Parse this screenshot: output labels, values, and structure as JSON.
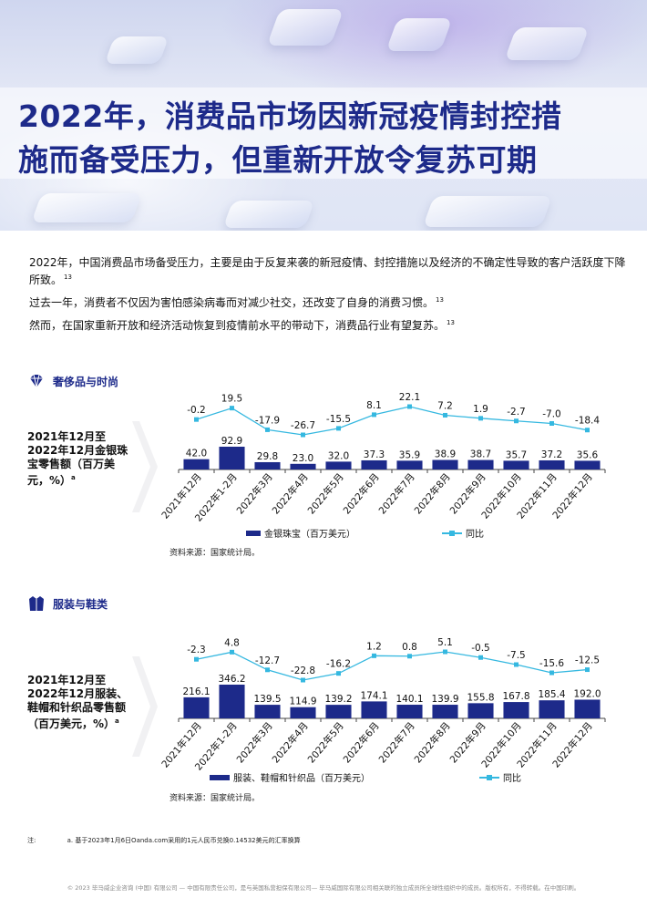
{
  "title": "2022年，消费品市场因新冠疫情封控措施而备受压力，但重新开放令复苏可期",
  "title_lines": [
    "2022年，消费品市场因新冠疫情封控措",
    "施而备受压力，但重新开放令复苏可期"
  ],
  "intro": [
    {
      "text": "2022年，中国消费品市场备受压力，主要是由于反复来袭的新冠疫情、封控措施以及经济的不确定性导致的客户活跃度下降所致。",
      "ref": "13"
    },
    {
      "text": "过去一年，消费者不仅因为害怕感染病毒而对减少社交，还改变了自身的消费习惯。",
      "ref": "13"
    },
    {
      "text": "然而，在国家重新开放和经济活动恢复到疫情前水平的带动下，消费品行业有望复苏。",
      "ref": "13"
    }
  ],
  "sections": [
    {
      "heading": "奢侈品与时尚",
      "icon": "diamond-icon",
      "side_label": "2021年12月至2022年12月金银珠宝零售额（百万美元，%）",
      "side_sup": "a",
      "source": "资料来源：国家统计局。"
    },
    {
      "heading": "服装与鞋类",
      "icon": "jacket-icon",
      "side_label": "2021年12月至2022年12月服装、鞋帽和针织品零售额（百万美元，%）",
      "side_sup": "a",
      "source": "资料来源：国家统计局。"
    }
  ],
  "chart_data": [
    {
      "type": "bar",
      "categories": [
        "2021年12月",
        "2022年1-2月",
        "2022年3月",
        "2022年4月",
        "2022年5月",
        "2022年6月",
        "2022年7月",
        "2022年8月",
        "2022年9月",
        "2022年10月",
        "2022年11月",
        "2022年12月"
      ],
      "series": [
        {
          "name": "金银珠宝（百万美元）",
          "type": "bar",
          "values": [
            42.0,
            92.9,
            29.8,
            23.0,
            32.0,
            37.3,
            35.9,
            38.9,
            38.7,
            35.7,
            37.2,
            35.6
          ]
        },
        {
          "name": "同比",
          "type": "line",
          "values": [
            -0.2,
            19.5,
            -17.9,
            -26.7,
            -15.5,
            8.1,
            22.1,
            7.2,
            1.9,
            -2.7,
            -7.0,
            -18.4
          ]
        }
      ],
      "colors": {
        "bar": "#1d2a8a",
        "line": "#35b8e0"
      },
      "legend": "bottom"
    },
    {
      "type": "bar",
      "categories": [
        "2021年12月",
        "2022年1-2月",
        "2022年3月",
        "2022年4月",
        "2022年5月",
        "2022年6月",
        "2022年7月",
        "2022年8月",
        "2022年9月",
        "2022年10月",
        "2022年11月",
        "2022年12月"
      ],
      "series": [
        {
          "name": "服装、鞋帽和针织品（百万美元）",
          "type": "bar",
          "values": [
            216.1,
            346.2,
            139.5,
            114.9,
            139.2,
            174.1,
            140.1,
            139.9,
            155.8,
            167.8,
            185.4,
            192.0
          ]
        },
        {
          "name": "同比",
          "type": "line",
          "values": [
            -2.3,
            4.8,
            -12.7,
            -22.8,
            -16.2,
            1.2,
            0.8,
            5.1,
            -0.5,
            -7.5,
            -15.6,
            -12.5
          ]
        }
      ],
      "colors": {
        "bar": "#1d2a8a",
        "line": "#35b8e0"
      },
      "legend": "bottom"
    }
  ],
  "footnote": {
    "label": "注:",
    "text": "a. 基于2023年1月6日Oanda.com采用的1元人民币兑换0.14532美元的汇率换算"
  },
  "copyright": "© 2023 毕马威企业咨询 (中国) 有限公司 — 中国有限责任公司，是与英国私营担保有限公司— 毕马威国际有限公司相关联的独立成员所全球性组织中的成员。版权所有，不得转载。在中国印刷。"
}
